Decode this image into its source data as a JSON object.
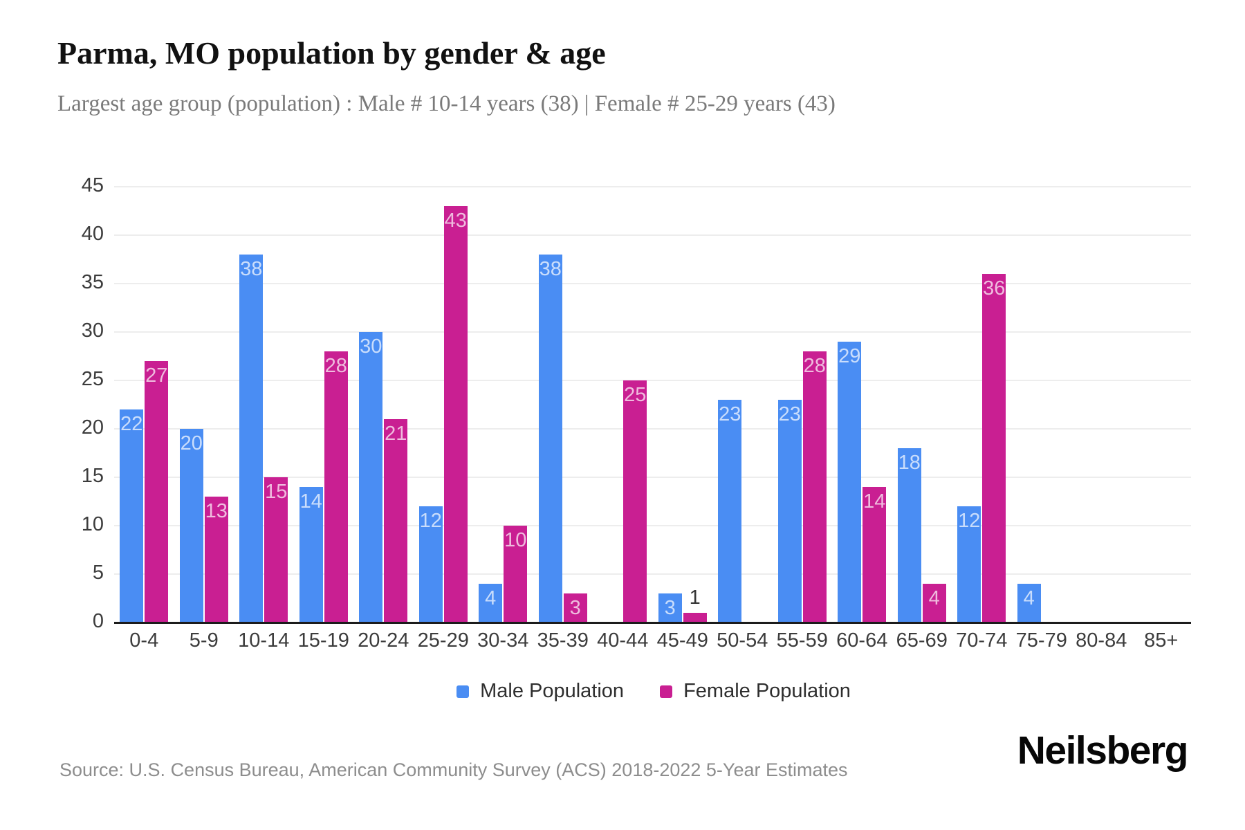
{
  "header": {
    "title": "Parma, MO population by gender & age",
    "subtitle": "Largest age group (population) : Male # 10-14 years (38) | Female # 25-29 years (43)"
  },
  "chart_data": {
    "type": "bar",
    "title": "Parma, MO population by gender & age",
    "categories": [
      "0-4",
      "5-9",
      "10-14",
      "15-19",
      "20-24",
      "25-29",
      "30-34",
      "35-39",
      "40-44",
      "45-49",
      "50-54",
      "55-59",
      "60-64",
      "65-69",
      "70-74",
      "75-79",
      "80-84",
      "85+"
    ],
    "series": [
      {
        "name": "Male Population",
        "color": "#4a8df3",
        "values": [
          22,
          20,
          38,
          14,
          30,
          12,
          4,
          38,
          0,
          3,
          23,
          23,
          29,
          18,
          12,
          4,
          0,
          0
        ]
      },
      {
        "name": "Female Population",
        "color": "#c91f92",
        "values": [
          27,
          13,
          15,
          28,
          21,
          43,
          10,
          3,
          25,
          1,
          0,
          28,
          14,
          4,
          36,
          0,
          0,
          0
        ]
      }
    ],
    "xlabel": "",
    "ylabel": "",
    "ylim": [
      0,
      45
    ],
    "yticks": [
      0,
      5,
      10,
      15,
      20,
      25,
      30,
      35,
      40,
      45
    ],
    "grid": "horizontal",
    "legend_position": "bottom",
    "value_labels": "inside-top-or-above-when-small"
  },
  "legend": {
    "items": [
      {
        "label": "Male Population",
        "color": "#4a8df3"
      },
      {
        "label": "Female Population",
        "color": "#c91f92"
      }
    ]
  },
  "footer": {
    "source": "Source: U.S. Census Bureau, American Community Survey (ACS) 2018-2022 5-Year Estimates",
    "logo": "Neilsberg"
  },
  "colors": {
    "male": "#4a8df3",
    "female": "#c91f92",
    "gridline": "#ededed",
    "axis": "#1c1c1c",
    "tick_text": "#3c3c3c",
    "bar_label_inside": "rgba(255,255,255,0.7)",
    "bar_label_outside": "#333333"
  }
}
